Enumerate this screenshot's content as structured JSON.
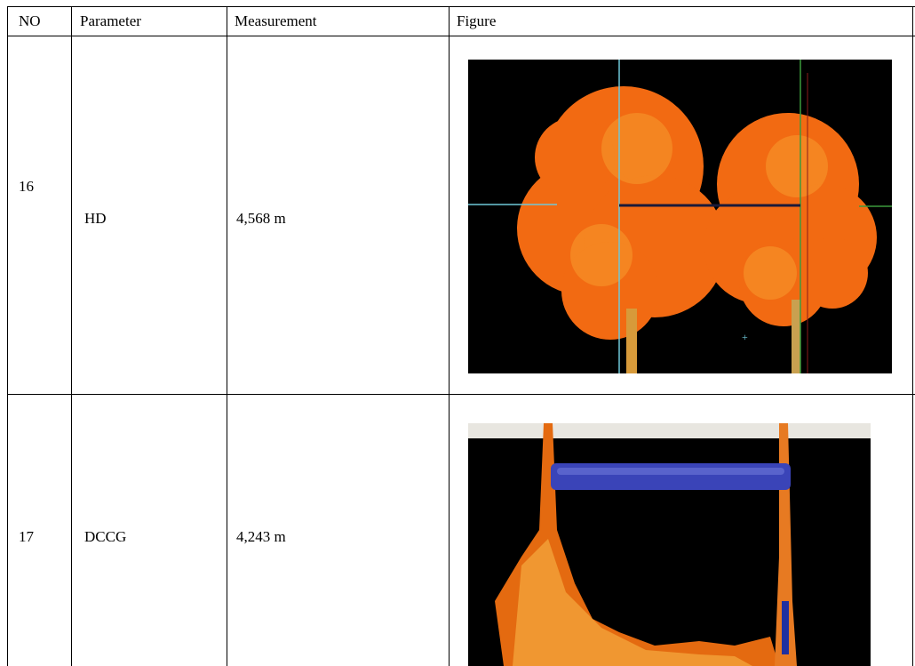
{
  "table": {
    "header": [
      "NO",
      "Parameter",
      "Measurement",
      "Figure"
    ],
    "rows": [
      [
        "16",
        "HD",
        "4,568 m"
      ],
      [
        "17",
        "DCCG",
        "4,243 m"
      ]
    ]
  }
}
